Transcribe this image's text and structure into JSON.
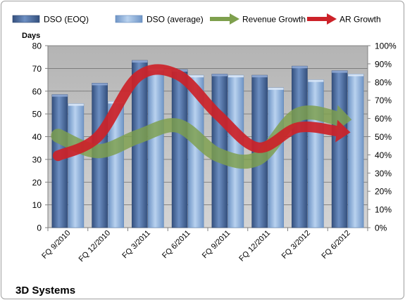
{
  "chart_data": {
    "type": "bar",
    "title": "3D Systems",
    "y_left_label": "Days",
    "y_left_range": [
      0,
      80
    ],
    "y_left_ticks": [
      "0",
      "10",
      "20",
      "30",
      "40",
      "50",
      "60",
      "70",
      "80"
    ],
    "y_right_range": [
      0,
      100
    ],
    "y_right_ticks": [
      "0%",
      "10%",
      "20%",
      "30%",
      "40%",
      "50%",
      "60%",
      "70%",
      "80%",
      "90%",
      "100%"
    ],
    "categories": [
      "FQ 9/2010",
      "FQ 12/2010",
      "FQ 3/2011",
      "FQ 6/2011",
      "FQ 9/2011",
      "FQ 12/2011",
      "FQ 3/2012",
      "FQ 6/2012"
    ],
    "series": [
      {
        "name": "DSO (EOQ)",
        "kind": "bar",
        "axis": "left",
        "color": "#4a6fa5",
        "values": [
          58.5,
          63.5,
          73.5,
          69.5,
          67.5,
          67,
          71,
          69
        ]
      },
      {
        "name": "DSO (average)",
        "kind": "bar",
        "axis": "left",
        "color": "#8fb3dd",
        "values": [
          54.5,
          55.5,
          70,
          67,
          67,
          61.5,
          65,
          67.5
        ]
      },
      {
        "name": "Revenue Growth",
        "kind": "arrow",
        "axis": "right",
        "color": "#7ea04d",
        "values": [
          50.5,
          42,
          50,
          56,
          40,
          38,
          62,
          60
        ]
      },
      {
        "name": "AR Growth",
        "kind": "arrow",
        "axis": "right",
        "color": "#cc2229",
        "values": [
          39.5,
          50,
          83,
          84,
          62,
          44,
          55,
          53
        ]
      }
    ],
    "legend_position": "top",
    "grid": true,
    "plot_background": "#c0c0c0"
  }
}
